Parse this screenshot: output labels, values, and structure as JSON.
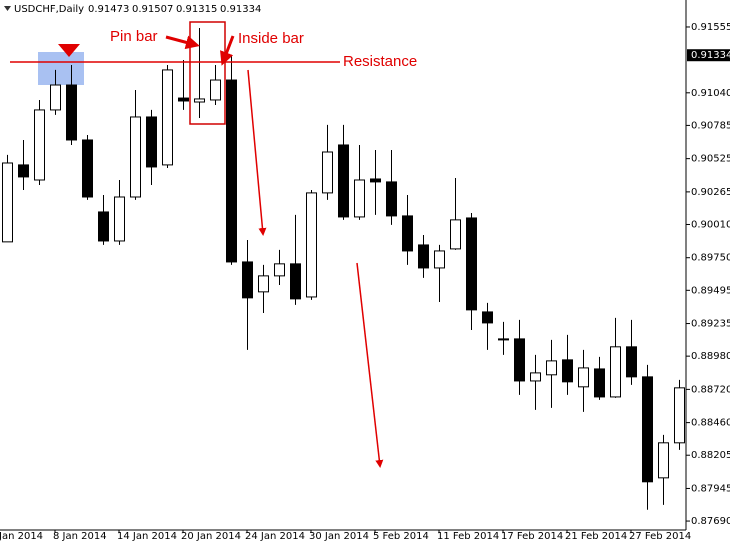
{
  "chart_data": {
    "type": "candlestick",
    "symbol": "USDCHF,Daily",
    "header_values": [
      0.91473,
      0.91507,
      0.91315,
      0.91334
    ],
    "leading_date_label": "Jan 2014",
    "categories": [
      null,
      null,
      null,
      "8 Jan 2014",
      null,
      null,
      null,
      "14 Jan 2014",
      null,
      null,
      null,
      "20 Jan 2014",
      null,
      null,
      null,
      "24 Jan 2014",
      null,
      null,
      null,
      "30 Jan 2014",
      null,
      null,
      null,
      "5 Feb 2014",
      null,
      null,
      null,
      "11 Feb 2014",
      null,
      null,
      null,
      "17 Feb 2014",
      null,
      null,
      null,
      "21 Feb 2014",
      null,
      null,
      null,
      "27 Feb 2014",
      null,
      null,
      null
    ],
    "open": [
      0.89874,
      0.90476,
      0.90358,
      0.90906,
      0.91101,
      0.90671,
      0.90108,
      0.89881,
      0.90225,
      0.90851,
      0.90476,
      0.90999,
      0.90968,
      0.90984,
      0.9114,
      0.89717,
      0.89483,
      0.89608,
      0.89702,
      0.89443,
      0.90257,
      0.90632,
      0.90069,
      0.90366,
      0.90343,
      0.90077,
      0.8985,
      0.8967,
      0.89819,
      0.90061,
      0.89326,
      0.89115,
      0.89115,
      0.88786,
      0.88834,
      0.88951,
      0.8874,
      0.8888,
      0.88661,
      0.89053,
      0.88818,
      0.88028,
      0.88302
    ],
    "high": [
      0.90554,
      0.90671,
      0.90984,
      0.91219,
      0.91258,
      0.9071,
      0.90241,
      0.90358,
      0.91062,
      0.90906,
      0.91258,
      0.91297,
      0.91547,
      0.91258,
      0.91336,
      0.89889,
      0.89694,
      0.89811,
      0.90085,
      0.9028,
      0.90789,
      0.90789,
      0.90632,
      0.90593,
      0.90593,
      0.90241,
      0.89928,
      0.8985,
      0.90374,
      0.901,
      0.89397,
      0.89248,
      0.89264,
      0.8899,
      0.89107,
      0.89146,
      0.89029,
      0.88974,
      0.89279,
      0.89264,
      0.88912,
      0.88364,
      0.88794
    ],
    "low": [
      0.89874,
      0.9028,
      0.90319,
      0.90867,
      0.90632,
      0.90202,
      0.8985,
      0.8985,
      0.90202,
      0.90319,
      0.90452,
      0.90906,
      0.90843,
      0.90945,
      0.89694,
      0.89029,
      0.89318,
      0.89537,
      0.89381,
      0.8942,
      0.90202,
      0.90046,
      0.90046,
      0.90085,
      0.90007,
      0.89694,
      0.89592,
      0.89404,
      0.89811,
      0.89185,
      0.89029,
      0.8899,
      0.88677,
      0.8856,
      0.88575,
      0.88677,
      0.88544,
      0.88638,
      0.88654,
      0.88755,
      0.87778,
      0.87817,
      0.88247
    ],
    "close": [
      0.90491,
      0.90382,
      0.90906,
      0.91101,
      0.90671,
      0.90225,
      0.89881,
      0.90225,
      0.90851,
      0.9046,
      0.91219,
      0.90976,
      0.90992,
      0.9114,
      0.89717,
      0.89436,
      0.89608,
      0.89702,
      0.89428,
      0.90257,
      0.90577,
      0.90069,
      0.90358,
      0.90343,
      0.90077,
      0.89803,
      0.8967,
      0.89803,
      0.90046,
      0.89342,
      0.8924,
      0.89107,
      0.88786,
      0.88849,
      0.88943,
      0.88779,
      0.88888,
      0.88661,
      0.89053,
      0.88818,
      0.87997,
      0.88302,
      0.88732
    ],
    "ylim": [
      0.8762,
      0.91766
    ],
    "yticks": [
      0.91555,
      {
        "value": 0.9104,
        "label": "0.91040"
      },
      0.90785,
      0.90525,
      0.90265,
      {
        "value": 0.9001,
        "label": "0.90010"
      },
      {
        "value": 0.8975,
        "label": "0.89750"
      },
      0.89495,
      0.89235,
      {
        "value": 0.8898,
        "label": "0.88980"
      },
      {
        "value": 0.8872,
        "label": "0.88720"
      },
      {
        "value": 0.8846,
        "label": "0.88460"
      },
      0.88205,
      0.87945,
      {
        "value": 0.8769,
        "label": "0.87690"
      }
    ],
    "last_price": 0.91334,
    "annotations": [
      "Pin bar",
      "Inside bar",
      "Resistance"
    ]
  }
}
